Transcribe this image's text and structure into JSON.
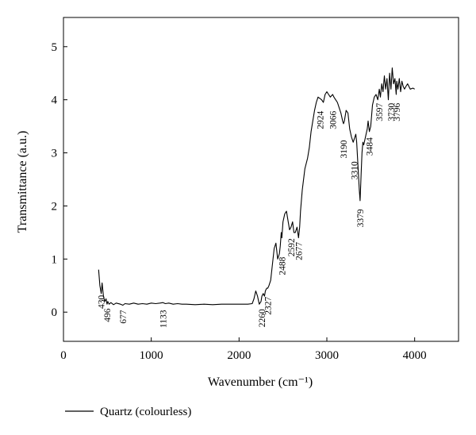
{
  "chart_data": {
    "type": "line",
    "title": "",
    "xlabel": "Wavenumber (cm⁻¹)",
    "ylabel": "Transmittance (a.u.)",
    "xlim": [
      0,
      4500
    ],
    "ylim": [
      -0.55,
      5.55
    ],
    "x_ticks": [
      0,
      1000,
      2000,
      3000,
      4000
    ],
    "y_ticks": [
      0,
      1,
      2,
      3,
      4,
      5
    ],
    "grid": false,
    "legend_position": "bottom-left",
    "series": [
      {
        "name": "Quartz (colourless)",
        "color": "#000000",
        "x": [
          400,
          415,
          430,
          440,
          455,
          470,
          485,
          496,
          505,
          520,
          540,
          570,
          600,
          650,
          677,
          700,
          750,
          800,
          850,
          900,
          950,
          1000,
          1050,
          1100,
          1133,
          1160,
          1200,
          1250,
          1300,
          1350,
          1400,
          1500,
          1600,
          1700,
          1800,
          1900,
          2000,
          2100,
          2150,
          2170,
          2190,
          2210,
          2230,
          2250,
          2260,
          2275,
          2290,
          2300,
          2315,
          2327,
          2340,
          2360,
          2380,
          2400,
          2420,
          2440,
          2460,
          2470,
          2480,
          2488,
          2500,
          2520,
          2540,
          2560,
          2575,
          2592,
          2610,
          2625,
          2640,
          2660,
          2677,
          2690,
          2700,
          2720,
          2750,
          2780,
          2800,
          2820,
          2840,
          2860,
          2880,
          2900,
          2924,
          2940,
          2960,
          2980,
          3000,
          3020,
          3040,
          3066,
          3080,
          3100,
          3120,
          3140,
          3160,
          3180,
          3190,
          3200,
          3220,
          3240,
          3260,
          3280,
          3300,
          3310,
          3320,
          3330,
          3340,
          3350,
          3360,
          3370,
          3379,
          3390,
          3400,
          3410,
          3420,
          3440,
          3460,
          3470,
          3484,
          3500,
          3520,
          3540,
          3560,
          3580,
          3597,
          3610,
          3625,
          3640,
          3655,
          3670,
          3685,
          3700,
          3715,
          3730,
          3745,
          3760,
          3775,
          3790,
          3796,
          3810,
          3825,
          3840,
          3855,
          3870,
          3885,
          3900,
          3920,
          3950,
          3980,
          4000
        ],
        "y": [
          0.8,
          0.5,
          0.35,
          0.55,
          0.3,
          0.2,
          0.25,
          0.15,
          0.2,
          0.15,
          0.18,
          0.14,
          0.17,
          0.15,
          0.13,
          0.16,
          0.15,
          0.17,
          0.15,
          0.16,
          0.15,
          0.17,
          0.16,
          0.17,
          0.18,
          0.16,
          0.17,
          0.15,
          0.16,
          0.15,
          0.15,
          0.14,
          0.15,
          0.14,
          0.15,
          0.15,
          0.15,
          0.15,
          0.16,
          0.25,
          0.4,
          0.3,
          0.15,
          0.2,
          0.3,
          0.35,
          0.3,
          0.4,
          0.45,
          0.45,
          0.5,
          0.6,
          0.9,
          1.2,
          1.3,
          1.0,
          1.1,
          1.25,
          1.5,
          1.4,
          1.7,
          1.85,
          1.9,
          1.7,
          1.55,
          1.6,
          1.7,
          1.5,
          1.5,
          1.6,
          1.4,
          1.6,
          1.9,
          2.3,
          2.7,
          2.9,
          3.1,
          3.4,
          3.6,
          3.8,
          3.95,
          4.05,
          4.02,
          4.0,
          3.95,
          4.1,
          4.15,
          4.1,
          4.05,
          4.1,
          4.05,
          4.0,
          3.95,
          3.85,
          3.75,
          3.6,
          3.55,
          3.6,
          3.8,
          3.75,
          3.45,
          3.3,
          3.2,
          3.25,
          3.3,
          3.35,
          3.2,
          2.9,
          2.6,
          2.3,
          2.1,
          2.6,
          3.0,
          3.2,
          3.15,
          3.3,
          3.45,
          3.6,
          3.4,
          3.5,
          3.9,
          4.05,
          4.1,
          4.0,
          4.2,
          4.05,
          4.3,
          4.15,
          4.45,
          4.2,
          4.4,
          4.0,
          4.5,
          4.2,
          4.6,
          4.3,
          4.4,
          4.1,
          4.35,
          4.2,
          4.4,
          4.15,
          4.35,
          4.25,
          4.2,
          4.25,
          4.3,
          4.2,
          4.22,
          4.2
        ]
      }
    ],
    "peak_labels": [
      {
        "text": "430",
        "x": 430,
        "y": 0.38
      },
      {
        "text": "496",
        "x": 496,
        "y": 0.13
      },
      {
        "text": "677",
        "x": 677,
        "y": 0.1
      },
      {
        "text": "1133",
        "x": 1133,
        "y": 0.1
      },
      {
        "text": "2260",
        "x": 2260,
        "y": 0.12
      },
      {
        "text": "2327",
        "x": 2327,
        "y": 0.35
      },
      {
        "text": "2488",
        "x": 2488,
        "y": 1.1
      },
      {
        "text": "2592",
        "x": 2592,
        "y": 1.45
      },
      {
        "text": "2677",
        "x": 2677,
        "y": 1.38
      },
      {
        "text": "2924",
        "x": 2924,
        "y": 3.85
      },
      {
        "text": "3066",
        "x": 3066,
        "y": 3.85
      },
      {
        "text": "3190",
        "x": 3190,
        "y": 3.3
      },
      {
        "text": "3310",
        "x": 3310,
        "y": 2.9
      },
      {
        "text": "3379",
        "x": 3379,
        "y": 2.0
      },
      {
        "text": "3484",
        "x": 3484,
        "y": 3.35
      },
      {
        "text": "3597",
        "x": 3597,
        "y": 4.0
      },
      {
        "text": "3730",
        "x": 3730,
        "y": 4.0
      },
      {
        "text": "3796",
        "x": 3796,
        "y": 4.0
      }
    ]
  }
}
